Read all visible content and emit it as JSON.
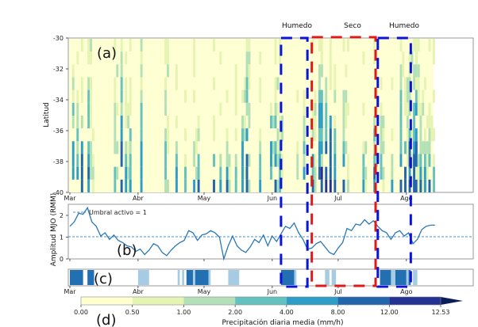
{
  "chart_data": [
    {
      "id": "a",
      "type": "heatmap",
      "panel_label": "(a)",
      "ylabel": "Latitud",
      "yticks": [
        "-30",
        "-32",
        "-34",
        "-36",
        "-38",
        "-40"
      ],
      "ylim": [
        -40,
        -30
      ],
      "xticks": [
        "Mar",
        "Abr",
        "May",
        "Jun",
        "Jul",
        "Ago"
      ],
      "x_start_day": 0,
      "x_end_day": 166,
      "lat_bins": 12,
      "description": "Daily mean precipitation by latitude, March–August; intense columns (dark blue) concentrated around early-mid June and late July–early August",
      "active_columns": [
        {
          "day": 1,
          "top": 0.1,
          "int": 3
        },
        {
          "day": 3,
          "top": 0.3,
          "int": 2
        },
        {
          "day": 5,
          "top": 0.25,
          "int": 4
        },
        {
          "day": 8,
          "top": 0.0,
          "int": 3
        },
        {
          "day": 9,
          "top": 0.6,
          "int": 2
        },
        {
          "day": 20,
          "top": 0.2,
          "int": 2
        },
        {
          "day": 23,
          "top": 0.0,
          "int": 4
        },
        {
          "day": 25,
          "top": 0.4,
          "int": 2
        },
        {
          "day": 27,
          "top": 0.2,
          "int": 2
        },
        {
          "day": 32,
          "top": 0.0,
          "int": 3
        },
        {
          "day": 43,
          "top": 0.0,
          "int": 1
        },
        {
          "day": 48,
          "top": 0.5,
          "int": 3
        },
        {
          "day": 52,
          "top": 0.7,
          "int": 2
        },
        {
          "day": 56,
          "top": 0.6,
          "int": 4
        },
        {
          "day": 58,
          "top": 0.45,
          "int": 3
        },
        {
          "day": 65,
          "top": 0.55,
          "int": 3
        },
        {
          "day": 68,
          "top": 0.7,
          "int": 3
        },
        {
          "day": 71,
          "top": 0.6,
          "int": 4
        },
        {
          "day": 75,
          "top": 0.4,
          "int": 2
        },
        {
          "day": 78,
          "top": 0.3,
          "int": 3
        },
        {
          "day": 80,
          "top": 0.0,
          "int": 4
        },
        {
          "day": 86,
          "top": 0.6,
          "int": 2
        },
        {
          "day": 91,
          "top": 0.3,
          "int": 3
        },
        {
          "day": 93,
          "top": 0.25,
          "int": 4
        },
        {
          "day": 95,
          "top": 0.5,
          "int": 2
        },
        {
          "day": 103,
          "top": 0.6,
          "int": 2
        },
        {
          "day": 106,
          "top": 0.3,
          "int": 2
        },
        {
          "day": 110,
          "top": 0.4,
          "int": 3
        },
        {
          "day": 113,
          "top": 0.0,
          "int": 4
        },
        {
          "day": 114,
          "top": 0.0,
          "int": 4
        },
        {
          "day": 116,
          "top": 0.2,
          "int": 4
        },
        {
          "day": 118,
          "top": 0.0,
          "int": 4
        },
        {
          "day": 120,
          "top": 0.3,
          "int": 3
        },
        {
          "day": 124,
          "top": 0.2,
          "int": 3
        },
        {
          "day": 126,
          "top": 0.8,
          "int": 2
        },
        {
          "day": 133,
          "top": 0.6,
          "int": 2
        },
        {
          "day": 138,
          "top": 0.35,
          "int": 3
        },
        {
          "day": 141,
          "top": 0.5,
          "int": 2
        },
        {
          "day": 146,
          "top": 0.7,
          "int": 2
        },
        {
          "day": 150,
          "top": 0.0,
          "int": 3
        },
        {
          "day": 152,
          "top": 0.3,
          "int": 3
        },
        {
          "day": 154,
          "top": 0.1,
          "int": 4
        },
        {
          "day": 156,
          "top": 0.0,
          "int": 4
        },
        {
          "day": 157,
          "top": 0.0,
          "int": 4
        },
        {
          "day": 159,
          "top": 0.35,
          "int": 3
        },
        {
          "day": 161,
          "top": 0.55,
          "int": 3
        },
        {
          "day": 163,
          "top": 0.5,
          "int": 3
        },
        {
          "day": 165,
          "top": 0.7,
          "int": 3
        }
      ],
      "annotations": [
        {
          "text": "Humedo",
          "type": "box",
          "color": "#0a14d6",
          "start_day": 96,
          "end_day": 108
        },
        {
          "text": "Seco",
          "type": "box",
          "color": "#e01818",
          "start_day": 110,
          "end_day": 139
        },
        {
          "text": "Humedo",
          "type": "box",
          "color": "#0a14d6",
          "start_day": 140,
          "end_day": 155
        }
      ]
    },
    {
      "id": "b",
      "type": "line",
      "panel_label": "(b)",
      "ylabel": "Amplitud MJO (RMM)",
      "yticks": [
        "0",
        "1",
        "2"
      ],
      "ylim": [
        0,
        2.5
      ],
      "xticks": [
        "Mar",
        "Abr",
        "May",
        "Jun",
        "Jul",
        "Ago"
      ],
      "threshold": 1,
      "legend": "Umbral activo = 1",
      "legend_placement": "top-left",
      "series": [
        {
          "name": "Amplitud MJO",
          "days": [
            0,
            2,
            4,
            6,
            8,
            10,
            12,
            14,
            16,
            18,
            20,
            22,
            24,
            26,
            28,
            30,
            32,
            34,
            36,
            38,
            40,
            42,
            44,
            46,
            48,
            50,
            52,
            54,
            56,
            58,
            60,
            62,
            64,
            66,
            68,
            70,
            72,
            74,
            76,
            78,
            80,
            82,
            84,
            86,
            88,
            90,
            92,
            94,
            96,
            98,
            100,
            102,
            104,
            106,
            108,
            110,
            112,
            114,
            116,
            118,
            120,
            122,
            124,
            126,
            128,
            130,
            132,
            134,
            136,
            138,
            140,
            142,
            144,
            146,
            148,
            150,
            152,
            154,
            156,
            158,
            160,
            162,
            164,
            166
          ],
          "values": [
            1.5,
            1.7,
            2.1,
            2.05,
            2.35,
            1.7,
            1.5,
            1.05,
            1.2,
            0.9,
            1.1,
            0.85,
            0.75,
            0.6,
            0.55,
            0.35,
            0.45,
            0.2,
            0.4,
            0.7,
            0.6,
            0.3,
            0.15,
            0.4,
            0.6,
            0.75,
            0.85,
            1.3,
            1.2,
            0.85,
            1.1,
            1.15,
            1.3,
            1.2,
            1.0,
            0.0,
            0.6,
            1.05,
            0.6,
            0.4,
            0.3,
            0.55,
            0.9,
            0.75,
            1.1,
            0.6,
            1.05,
            0.8,
            1.15,
            1.5,
            1.4,
            1.65,
            1.2,
            0.9,
            0.45,
            0.5,
            0.7,
            0.8,
            0.55,
            0.3,
            0.2,
            0.5,
            0.75,
            1.4,
            1.3,
            1.6,
            1.55,
            1.8,
            1.6,
            1.75,
            1.5,
            1.3,
            1.2,
            0.9,
            1.2,
            1.3,
            1.05,
            1.2,
            0.7,
            0.9,
            1.35,
            1.5,
            1.55,
            1.55
          ],
          "color": "#2a78b4"
        }
      ]
    },
    {
      "id": "c",
      "type": "bar",
      "panel_label": "(c)",
      "xticks": [
        "Mar",
        "Abr",
        "May",
        "Jun",
        "Jul",
        "Ago"
      ],
      "description": "MJO phase/activity strip; dark = strong active, light = weak active",
      "segments": [
        {
          "start": 0,
          "end": 6,
          "level": "strong"
        },
        {
          "start": 8,
          "end": 11,
          "level": "strong"
        },
        {
          "start": 31,
          "end": 36,
          "level": "weak"
        },
        {
          "start": 49,
          "end": 50,
          "level": "weak"
        },
        {
          "start": 51,
          "end": 52,
          "level": "weak"
        },
        {
          "start": 53,
          "end": 56,
          "level": "strong"
        },
        {
          "start": 56,
          "end": 57,
          "level": "weak"
        },
        {
          "start": 57,
          "end": 63,
          "level": "strong"
        },
        {
          "start": 63,
          "end": 64,
          "level": "weak"
        },
        {
          "start": 72,
          "end": 77,
          "level": "weak"
        },
        {
          "start": 96,
          "end": 102,
          "level": "strong"
        },
        {
          "start": 102,
          "end": 103,
          "level": "weak"
        },
        {
          "start": 116,
          "end": 118,
          "level": "weak"
        },
        {
          "start": 119,
          "end": 121,
          "level": "weak"
        },
        {
          "start": 141,
          "end": 146,
          "level": "strong"
        },
        {
          "start": 146,
          "end": 148,
          "level": "weak"
        },
        {
          "start": 148,
          "end": 153,
          "level": "strong"
        },
        {
          "start": 153,
          "end": 154,
          "level": "weak"
        },
        {
          "start": 154,
          "end": 155,
          "level": "strong"
        },
        {
          "start": 156,
          "end": 158,
          "level": "weak"
        }
      ],
      "colors": {
        "strong": "#2270b2",
        "weak": "#a6cce4"
      }
    },
    {
      "id": "d",
      "type": "colorbar",
      "panel_label": "(d)",
      "label": "Precipitación diaria media (mm/h)",
      "tick_labels": [
        "0.00",
        "0.50",
        "1.00",
        "2.00",
        "4.00",
        "8.00",
        "12.00",
        "12.53"
      ],
      "colors": [
        "#ffffd0",
        "#e6f4b3",
        "#b3e0b6",
        "#63c1bf",
        "#2c9ec8",
        "#2165ad",
        "#233293",
        "#0c1d5c"
      ],
      "extend": "max"
    }
  ],
  "labels": {
    "humedo1": "Humedo",
    "seco": "Seco",
    "humedo2": "Humedo",
    "panel_a": "(a)",
    "panel_b": "(b)",
    "panel_c": "(c)",
    "panel_d": "(d)",
    "ylabel_a": "Latitud",
    "ylabel_b": "Amplitud MJO (RMM)",
    "legend_b": "Umbral activo = 1",
    "cbar_label": "Precipitación diaria media (mm/h)",
    "months": [
      "Mar",
      "Abr",
      "May",
      "Jun",
      "Jul",
      "Ago"
    ],
    "lat_ticks": [
      "-30",
      "-32",
      "-34",
      "-36",
      "-38",
      "-40"
    ],
    "amp_ticks": [
      "0",
      "1",
      "2"
    ],
    "cbar_ticks": [
      "0.00",
      "0.50",
      "1.00",
      "2.00",
      "4.00",
      "8.00",
      "12.00",
      "12.53"
    ]
  }
}
